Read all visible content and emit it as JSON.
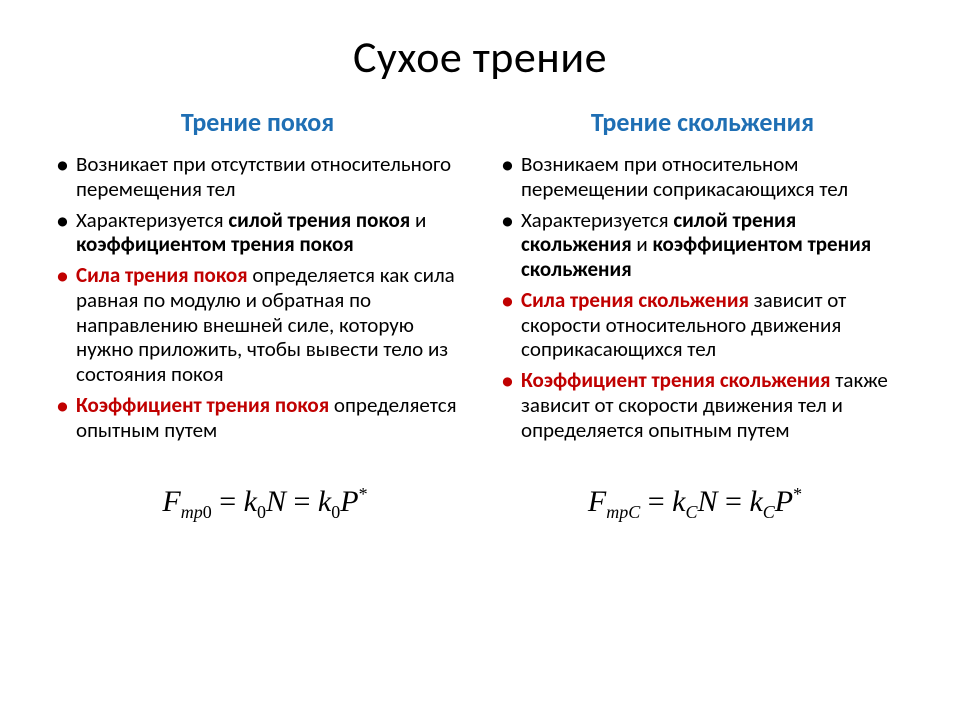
{
  "title": "Сухое трение",
  "left": {
    "heading": "Трение покоя",
    "items": [
      {
        "bullet": "#000000",
        "html": "Возникает при отсутствии относительного перемещения тел"
      },
      {
        "bullet": "#000000",
        "html": "Характеризуется <span class='b'>силой трения покоя</span> и <span class='b'>коэффициентом трения покоя</span>"
      },
      {
        "bullet": "#c00000",
        "html": "<span class='red'>Сила трения покоя</span> определяется как сила равная по модулю и обратная по направлению внешней силе, которую нужно приложить, чтобы вывести тело из состояния покоя"
      },
      {
        "bullet": "#c00000",
        "html": "<span class='red'>Коэффициент трения покоя</span> определяется опытным путем"
      }
    ],
    "formula": "F_{тр0} = k_0 N = k_0 P*"
  },
  "right": {
    "heading": "Трение скольжения",
    "items": [
      {
        "bullet": "#000000",
        "html": "Возникаем при относительном перемещении соприкасающихся тел"
      },
      {
        "bullet": "#000000",
        "html": "Характеризуется <span class='b'>силой трения скольжения</span> и <span class='b'>коэффициентом трения скольжения</span>"
      },
      {
        "bullet": "#c00000",
        "html": "<span class='red'>Сила трения скольжения</span> зависит от скорости относительного движения соприкасающихся тел"
      },
      {
        "bullet": "#c00000",
        "html": "<span class='red'>Коэффициент трения скольжения</span> также зависит от скорости движения тел и определяется опытным путем"
      }
    ],
    "formula": "F_{трC} = k_C N = k_C P*"
  },
  "colors": {
    "heading": "#1f6fb4",
    "highlight": "#c00000",
    "text": "#000000",
    "background": "#ffffff"
  }
}
